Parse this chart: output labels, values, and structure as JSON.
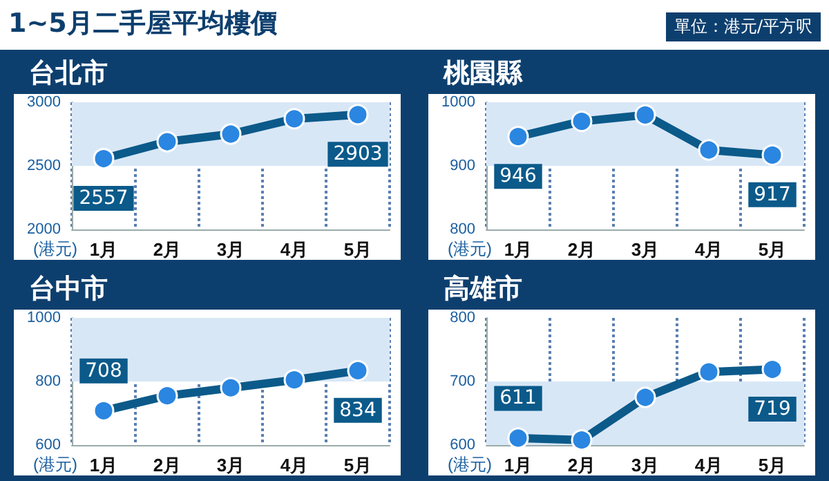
{
  "chart_data": [
    {
      "type": "line",
      "title": "台北市",
      "annotations": [
        "1~5月二手屋平均樓價",
        "單位：港元/平方呎"
      ],
      "ylabel": "(港元)",
      "categories": [
        "1月",
        "2月",
        "3月",
        "4月",
        "5月"
      ],
      "series": [
        {
          "color": "#0b5a8a",
          "values": [
            2557,
            2690,
            2750,
            2870,
            2903
          ],
          "value_labels": [
            "2557",
            null,
            null,
            null,
            "2903"
          ]
        }
      ],
      "ylim": [
        2000,
        3000
      ],
      "yticks": [
        2000,
        2500,
        3000
      ],
      "bands": [
        {
          "axis": "y",
          "from": 2500,
          "to": 3000,
          "color": "#d8e7f6"
        }
      ],
      "grid": "x",
      "marker": "circle"
    },
    {
      "type": "line",
      "title": "桃園縣",
      "ylabel": "(港元)",
      "categories": [
        "1月",
        "2月",
        "3月",
        "4月",
        "5月"
      ],
      "series": [
        {
          "color": "#0b5a8a",
          "values": [
            946,
            970,
            980,
            925,
            917
          ],
          "value_labels": [
            "946",
            null,
            null,
            null,
            "917"
          ]
        }
      ],
      "ylim": [
        800,
        1000
      ],
      "yticks": [
        800,
        900,
        1000
      ],
      "bands": [
        {
          "axis": "y",
          "from": 900,
          "to": 1000,
          "color": "#d8e7f6"
        }
      ],
      "grid": "x",
      "marker": "circle"
    },
    {
      "type": "line",
      "title": "台中市",
      "ylabel": "(港元)",
      "categories": [
        "1月",
        "2月",
        "3月",
        "4月",
        "5月"
      ],
      "series": [
        {
          "color": "#0b5a8a",
          "values": [
            708,
            755,
            780,
            805,
            834
          ],
          "value_labels": [
            "708",
            null,
            null,
            null,
            "834"
          ]
        }
      ],
      "ylim": [
        600,
        1000
      ],
      "yticks": [
        600,
        800,
        1000
      ],
      "bands": [
        {
          "axis": "y",
          "from": 800,
          "to": 1000,
          "color": "#d8e7f6"
        }
      ],
      "grid": "x",
      "marker": "circle"
    },
    {
      "type": "line",
      "title": "高雄市",
      "ylabel": "(港元)",
      "categories": [
        "1月",
        "2月",
        "3月",
        "4月",
        "5月"
      ],
      "series": [
        {
          "color": "#0b5a8a",
          "values": [
            611,
            608,
            675,
            715,
            719
          ],
          "value_labels": [
            "611",
            null,
            null,
            null,
            "719"
          ]
        }
      ],
      "ylim": [
        600,
        800
      ],
      "yticks": [
        600,
        700,
        800
      ],
      "bands": [
        {
          "axis": "y",
          "from": 600,
          "to": 700,
          "color": "#d8e7f6"
        }
      ],
      "grid": "x",
      "marker": "circle"
    }
  ]
}
